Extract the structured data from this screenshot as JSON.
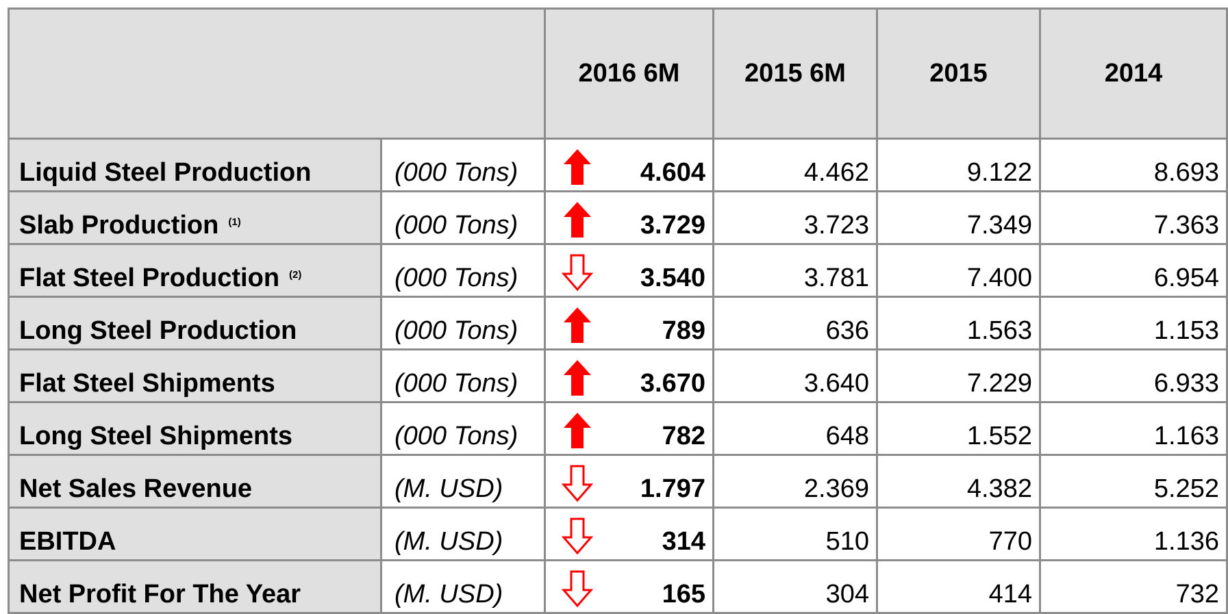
{
  "table": {
    "columns": [
      "2016 6M",
      "2015 6M",
      "2015",
      "2014"
    ],
    "rows": [
      {
        "label": "Liquid Steel Production",
        "unit": "(000 Tons)",
        "trend": "up",
        "values": [
          "4.604",
          "4.462",
          "9.122",
          "8.693"
        ]
      },
      {
        "label": "Slab Production",
        "note": "(1)",
        "unit": "(000 Tons)",
        "trend": "up",
        "values": [
          "3.729",
          "3.723",
          "7.349",
          "7.363"
        ]
      },
      {
        "label": "Flat Steel Production",
        "note": "(2)",
        "unit": "(000 Tons)",
        "trend": "down",
        "values": [
          "3.540",
          "3.781",
          "7.400",
          "6.954"
        ]
      },
      {
        "label": "Long Steel Production",
        "unit": "(000 Tons)",
        "trend": "up",
        "values": [
          "789",
          "636",
          "1.563",
          "1.153"
        ]
      },
      {
        "label": "Flat Steel Shipments",
        "unit": "(000 Tons)",
        "trend": "up",
        "values": [
          "3.670",
          "3.640",
          "7.229",
          "6.933"
        ]
      },
      {
        "label": "Long Steel Shipments",
        "unit": "(000 Tons)",
        "trend": "up",
        "values": [
          "782",
          "648",
          "1.552",
          "1.163"
        ]
      },
      {
        "label": "Net Sales Revenue",
        "unit": "(M. USD)",
        "trend": "down",
        "values": [
          "1.797",
          "2.369",
          "4.382",
          "5.252"
        ]
      },
      {
        "label": "EBITDA",
        "unit": "(M. USD)",
        "trend": "down",
        "values": [
          "314",
          "510",
          "770",
          "1.136"
        ]
      },
      {
        "label": "Net Profit For The Year",
        "unit": "(M. USD)",
        "trend": "down",
        "values": [
          "165",
          "304",
          "414",
          "732"
        ]
      }
    ]
  }
}
